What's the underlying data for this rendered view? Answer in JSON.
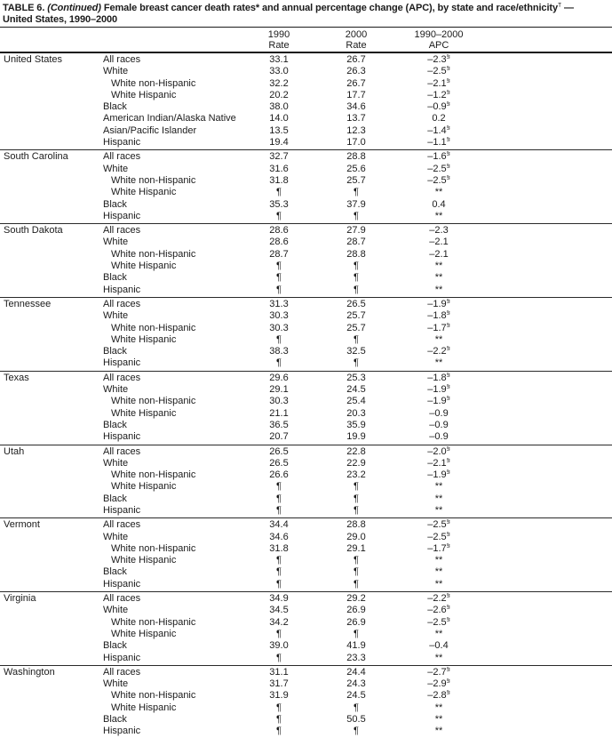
{
  "title": {
    "part1": "TABLE 6.",
    "part2": "(Continued)",
    "part3": "Female breast cancer death rates* and annual percentage change (APC), by state and race/ethnicity",
    "sup": "†",
    "part4": "—",
    "line2": "United States, 1990–2000"
  },
  "columns": [
    {
      "line1": "1990",
      "line2": "Rate"
    },
    {
      "line1": "2000",
      "line2": "Rate"
    },
    {
      "line1": "1990–2000",
      "line2": "APC"
    }
  ],
  "symbols": {
    "suppressed_rate": "¶",
    "suppressed_apc": "**",
    "significant": "§"
  },
  "sections": [
    {
      "state": "United States",
      "rows": [
        {
          "race": "All races",
          "indent": false,
          "r1990": "33.1",
          "r2000": "26.7",
          "apc": "–2.3",
          "apc_sup": "§"
        },
        {
          "race": "White",
          "indent": false,
          "r1990": "33.0",
          "r2000": "26.3",
          "apc": "–2.5",
          "apc_sup": "§"
        },
        {
          "race": "White non-Hispanic",
          "indent": true,
          "r1990": "32.2",
          "r2000": "26.7",
          "apc": "–2.1",
          "apc_sup": "§"
        },
        {
          "race": "White Hispanic",
          "indent": true,
          "r1990": "20.2",
          "r2000": "17.7",
          "apc": "–1.2",
          "apc_sup": "§"
        },
        {
          "race": "Black",
          "indent": false,
          "r1990": "38.0",
          "r2000": "34.6",
          "apc": "–0.9",
          "apc_sup": "§"
        },
        {
          "race": "American Indian/Alaska Native",
          "indent": false,
          "r1990": "14.0",
          "r2000": "13.7",
          "apc": "0.2",
          "apc_sup": ""
        },
        {
          "race": "Asian/Pacific Islander",
          "indent": false,
          "r1990": "13.5",
          "r2000": "12.3",
          "apc": "–1.4",
          "apc_sup": "§"
        },
        {
          "race": "Hispanic",
          "indent": false,
          "r1990": "19.4",
          "r2000": "17.0",
          "apc": "–1.1",
          "apc_sup": "§"
        }
      ]
    },
    {
      "state": "South Carolina",
      "rows": [
        {
          "race": "All races",
          "indent": false,
          "r1990": "32.7",
          "r2000": "28.8",
          "apc": "–1.6",
          "apc_sup": "§"
        },
        {
          "race": "White",
          "indent": false,
          "r1990": "31.6",
          "r2000": "25.6",
          "apc": "–2.5",
          "apc_sup": "§"
        },
        {
          "race": "White non-Hispanic",
          "indent": true,
          "r1990": "31.8",
          "r2000": "25.7",
          "apc": "–2.5",
          "apc_sup": "§"
        },
        {
          "race": "White Hispanic",
          "indent": true,
          "r1990": "¶",
          "r2000": "¶",
          "apc": "**",
          "apc_sup": ""
        },
        {
          "race": "Black",
          "indent": false,
          "r1990": "35.3",
          "r2000": "37.9",
          "apc": "0.4",
          "apc_sup": ""
        },
        {
          "race": "Hispanic",
          "indent": false,
          "r1990": "¶",
          "r2000": "¶",
          "apc": "**",
          "apc_sup": ""
        }
      ]
    },
    {
      "state": "South Dakota",
      "rows": [
        {
          "race": "All races",
          "indent": false,
          "r1990": "28.6",
          "r2000": "27.9",
          "apc": "–2.3",
          "apc_sup": ""
        },
        {
          "race": "White",
          "indent": false,
          "r1990": "28.6",
          "r2000": "28.7",
          "apc": "–2.1",
          "apc_sup": ""
        },
        {
          "race": "White non-Hispanic",
          "indent": true,
          "r1990": "28.7",
          "r2000": "28.8",
          "apc": "–2.1",
          "apc_sup": ""
        },
        {
          "race": "White Hispanic",
          "indent": true,
          "r1990": "¶",
          "r2000": "¶",
          "apc": "**",
          "apc_sup": ""
        },
        {
          "race": "Black",
          "indent": false,
          "r1990": "¶",
          "r2000": "¶",
          "apc": "**",
          "apc_sup": ""
        },
        {
          "race": "Hispanic",
          "indent": false,
          "r1990": "¶",
          "r2000": "¶",
          "apc": "**",
          "apc_sup": ""
        }
      ]
    },
    {
      "state": "Tennessee",
      "rows": [
        {
          "race": "All races",
          "indent": false,
          "r1990": "31.3",
          "r2000": "26.5",
          "apc": "–1.9",
          "apc_sup": "§"
        },
        {
          "race": "White",
          "indent": false,
          "r1990": "30.3",
          "r2000": "25.7",
          "apc": "–1.8",
          "apc_sup": "§"
        },
        {
          "race": "White non-Hispanic",
          "indent": true,
          "r1990": "30.3",
          "r2000": "25.7",
          "apc": "–1.7",
          "apc_sup": "§"
        },
        {
          "race": "White Hispanic",
          "indent": true,
          "r1990": "¶",
          "r2000": "¶",
          "apc": "**",
          "apc_sup": ""
        },
        {
          "race": "Black",
          "indent": false,
          "r1990": "38.3",
          "r2000": "32.5",
          "apc": "–2.2",
          "apc_sup": "§"
        },
        {
          "race": "Hispanic",
          "indent": false,
          "r1990": "¶",
          "r2000": "¶",
          "apc": "**",
          "apc_sup": ""
        }
      ]
    },
    {
      "state": "Texas",
      "rows": [
        {
          "race": "All races",
          "indent": false,
          "r1990": "29.6",
          "r2000": "25.3",
          "apc": "–1.8",
          "apc_sup": "§"
        },
        {
          "race": "White",
          "indent": false,
          "r1990": "29.1",
          "r2000": "24.5",
          "apc": "–1.9",
          "apc_sup": "§"
        },
        {
          "race": "White non-Hispanic",
          "indent": true,
          "r1990": "30.3",
          "r2000": "25.4",
          "apc": "–1.9",
          "apc_sup": "§"
        },
        {
          "race": "White Hispanic",
          "indent": true,
          "r1990": "21.1",
          "r2000": "20.3",
          "apc": "–0.9",
          "apc_sup": ""
        },
        {
          "race": "Black",
          "indent": false,
          "r1990": "36.5",
          "r2000": "35.9",
          "apc": "–0.9",
          "apc_sup": ""
        },
        {
          "race": "Hispanic",
          "indent": false,
          "r1990": "20.7",
          "r2000": "19.9",
          "apc": "–0.9",
          "apc_sup": ""
        }
      ]
    },
    {
      "state": "Utah",
      "rows": [
        {
          "race": "All races",
          "indent": false,
          "r1990": "26.5",
          "r2000": "22.8",
          "apc": "–2.0",
          "apc_sup": "§"
        },
        {
          "race": "White",
          "indent": false,
          "r1990": "26.5",
          "r2000": "22.9",
          "apc": "–2.1",
          "apc_sup": "§"
        },
        {
          "race": "White non-Hispanic",
          "indent": true,
          "r1990": "26.6",
          "r2000": "23.2",
          "apc": "–1.9",
          "apc_sup": "§"
        },
        {
          "race": "White Hispanic",
          "indent": true,
          "r1990": "¶",
          "r2000": "¶",
          "apc": "**",
          "apc_sup": ""
        },
        {
          "race": "Black",
          "indent": false,
          "r1990": "¶",
          "r2000": "¶",
          "apc": "**",
          "apc_sup": ""
        },
        {
          "race": "Hispanic",
          "indent": false,
          "r1990": "¶",
          "r2000": "¶",
          "apc": "**",
          "apc_sup": ""
        }
      ]
    },
    {
      "state": "Vermont",
      "rows": [
        {
          "race": "All races",
          "indent": false,
          "r1990": "34.4",
          "r2000": "28.8",
          "apc": "–2.5",
          "apc_sup": "§"
        },
        {
          "race": "White",
          "indent": false,
          "r1990": "34.6",
          "r2000": "29.0",
          "apc": "–2.5",
          "apc_sup": "§"
        },
        {
          "race": "White non-Hispanic",
          "indent": true,
          "r1990": "31.8",
          "r2000": "29.1",
          "apc": "–1.7",
          "apc_sup": "§"
        },
        {
          "race": "White Hispanic",
          "indent": true,
          "r1990": "¶",
          "r2000": "¶",
          "apc": "**",
          "apc_sup": ""
        },
        {
          "race": "Black",
          "indent": false,
          "r1990": "¶",
          "r2000": "¶",
          "apc": "**",
          "apc_sup": ""
        },
        {
          "race": "Hispanic",
          "indent": false,
          "r1990": "¶",
          "r2000": "¶",
          "apc": "**",
          "apc_sup": ""
        }
      ]
    },
    {
      "state": "Virginia",
      "rows": [
        {
          "race": "All races",
          "indent": false,
          "r1990": "34.9",
          "r2000": "29.2",
          "apc": "–2.2",
          "apc_sup": "§"
        },
        {
          "race": "White",
          "indent": false,
          "r1990": "34.5",
          "r2000": "26.9",
          "apc": "–2.6",
          "apc_sup": "§"
        },
        {
          "race": "White non-Hispanic",
          "indent": true,
          "r1990": "34.2",
          "r2000": "26.9",
          "apc": "–2.5",
          "apc_sup": "§"
        },
        {
          "race": "White Hispanic",
          "indent": true,
          "r1990": "¶",
          "r2000": "¶",
          "apc": "**",
          "apc_sup": ""
        },
        {
          "race": "Black",
          "indent": false,
          "r1990": "39.0",
          "r2000": "41.9",
          "apc": "–0.4",
          "apc_sup": ""
        },
        {
          "race": "Hispanic",
          "indent": false,
          "r1990": "¶",
          "r2000": "23.3",
          "apc": "**",
          "apc_sup": ""
        }
      ]
    },
    {
      "state": "Washington",
      "rows": [
        {
          "race": "All races",
          "indent": false,
          "r1990": "31.1",
          "r2000": "24.4",
          "apc": "–2.7",
          "apc_sup": "§"
        },
        {
          "race": "White",
          "indent": false,
          "r1990": "31.7",
          "r2000": "24.3",
          "apc": "–2.9",
          "apc_sup": "§"
        },
        {
          "race": "White non-Hispanic",
          "indent": true,
          "r1990": "31.9",
          "r2000": "24.5",
          "apc": "–2.8",
          "apc_sup": "§"
        },
        {
          "race": "White Hispanic",
          "indent": true,
          "r1990": "¶",
          "r2000": "¶",
          "apc": "**",
          "apc_sup": ""
        },
        {
          "race": "Black",
          "indent": false,
          "r1990": "¶",
          "r2000": "50.5",
          "apc": "**",
          "apc_sup": ""
        },
        {
          "race": "Hispanic",
          "indent": false,
          "r1990": "¶",
          "r2000": "¶",
          "apc": "**",
          "apc_sup": ""
        }
      ]
    }
  ]
}
